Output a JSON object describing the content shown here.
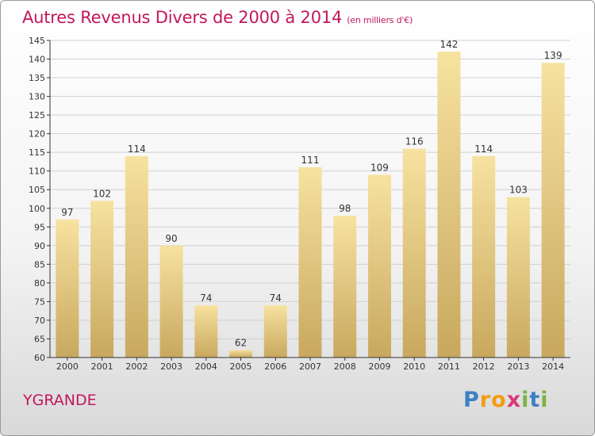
{
  "title": {
    "main": "Autres Revenus Divers de 2000 à 2014",
    "unit": "(en milliers d'€)"
  },
  "place_name": "YGRANDE",
  "logo": {
    "letters": [
      "P",
      "r",
      "o",
      "x",
      "i",
      "t",
      "i"
    ],
    "colors": [
      "#3f7fc4",
      "#f39c12",
      "#f39c12",
      "#d8397a",
      "#7cb342",
      "#3f7fc4",
      "#7cb342"
    ]
  },
  "chart_data": {
    "type": "bar",
    "categories": [
      "2000",
      "2001",
      "2002",
      "2003",
      "2004",
      "2005",
      "2006",
      "2007",
      "2008",
      "2009",
      "2010",
      "2011",
      "2012",
      "2013",
      "2014"
    ],
    "values": [
      97,
      102,
      114,
      90,
      74,
      62,
      74,
      111,
      98,
      109,
      116,
      142,
      114,
      103,
      139
    ],
    "ylim": [
      60,
      145
    ],
    "yticks": [
      60,
      65,
      70,
      75,
      80,
      85,
      90,
      95,
      100,
      105,
      110,
      115,
      120,
      125,
      130,
      135,
      140,
      145
    ],
    "grid": true,
    "colors": {
      "bar_light": "#f7e2a0",
      "bar_dark": "#c8a85e",
      "grid": "#d0d0d0",
      "axis": "#333333",
      "title": "#c2185b"
    }
  }
}
